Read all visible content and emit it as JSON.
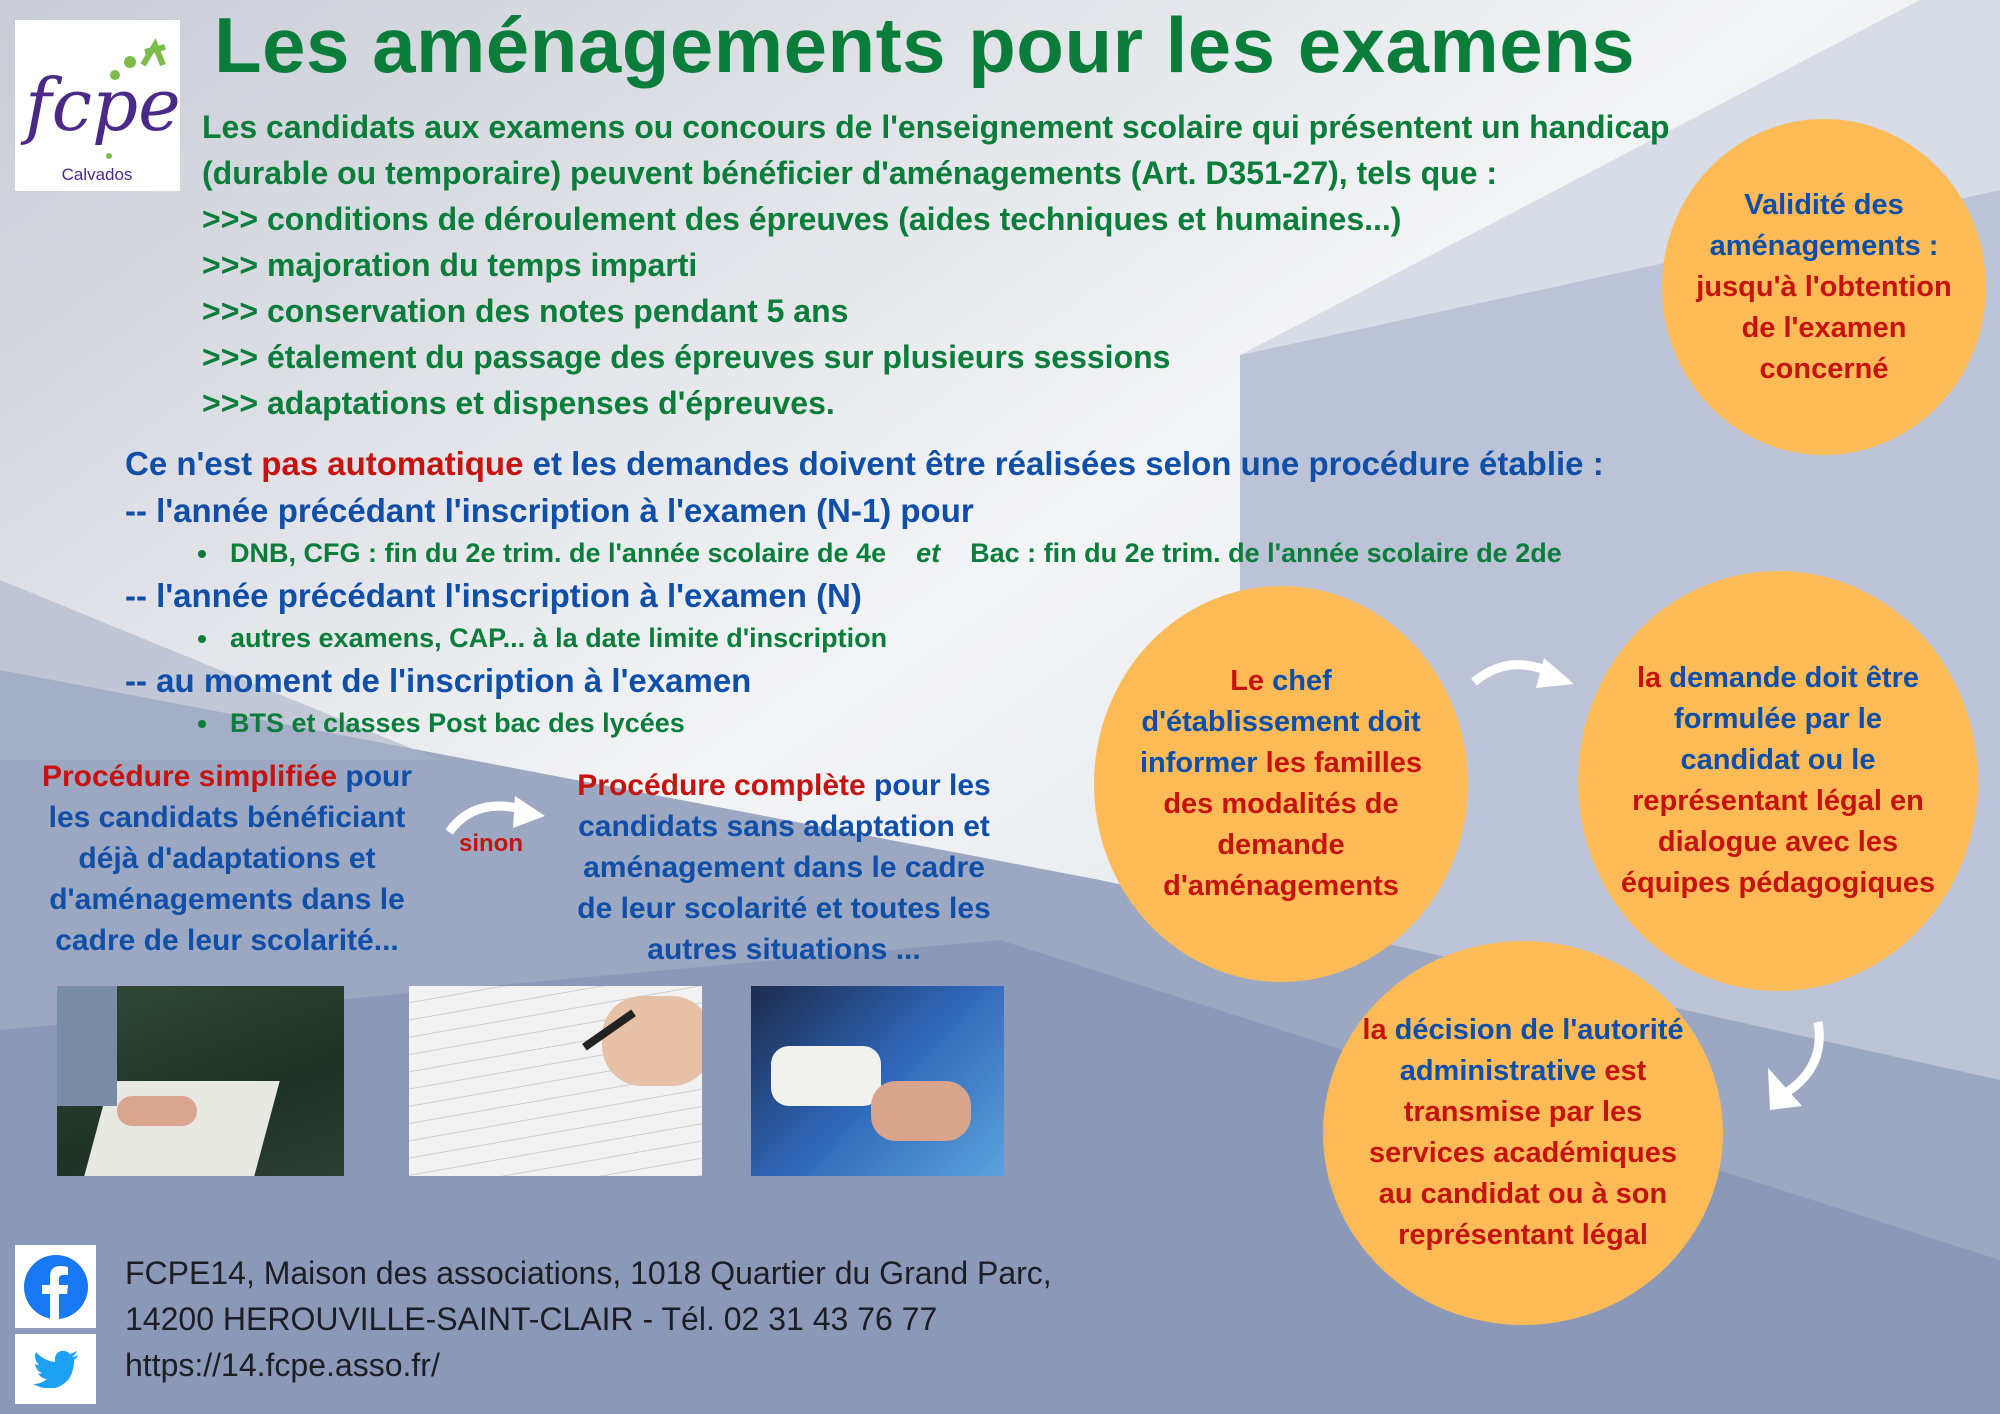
{
  "colors": {
    "green": "#0b7d3b",
    "blue": "#0f4fa8",
    "red": "#c5140f",
    "circle": "#fdbb58"
  },
  "logo": {
    "text": "fcpe",
    "region": "Calvados"
  },
  "title": "Les aménagements pour les examens",
  "intro": [
    "Les candidats aux examens ou concours de l'enseignement scolaire qui présentent un handicap",
    "(durable ou temporaire) peuvent bénéficier d'aménagements (Art. D351-27), tels que :",
    ">>> conditions de déroulement des épreuves (aides techniques et humaines...)",
    ">>> majoration du temps imparti",
    ">>> conservation des notes pendant 5 ans",
    ">>> étalement du passage des épreuves sur plusieurs sessions",
    ">>> adaptations et dispenses d'épreuves."
  ],
  "validity": [
    [
      {
        "text": "Validité des",
        "color": "blue"
      }
    ],
    [
      {
        "text": "aménagements :",
        "color": "blue"
      }
    ],
    [
      {
        "text": "jusqu'à l'obtention",
        "color": "red"
      }
    ],
    [
      {
        "text": "de l'examen",
        "color": "red"
      }
    ],
    [
      {
        "text": "concerné",
        "color": "red"
      }
    ]
  ],
  "procedure": {
    "lead": [
      {
        "text": "Ce n'est ",
        "color": "blue"
      },
      {
        "text": "pas automatique",
        "color": "red"
      },
      {
        "text": " et les demandes doivent être réalisées selon une procédure établie :",
        "color": "blue"
      }
    ],
    "n1": "-- l'année précédant l'inscription à l'examen (N-1) pour",
    "n1_bullet_a": "DNB, CFG : fin du 2e trim. de l'année scolaire de 4e",
    "n1_bullet_et": "et",
    "n1_bullet_b": "Bac : fin du 2e trim. de l'année scolaire de 2de",
    "n": "-- l'année précédant l'inscription à l'examen (N)",
    "n_bullet": "autres examens, CAP... à la date limite d'inscription",
    "at": "-- au moment de l'inscription à l'examen",
    "at_bullet": "BTS et classes Post bac des lycées"
  },
  "simplified": [
    [
      {
        "text": "Procédure simplifiée",
        "color": "red"
      },
      {
        "text": " pour",
        "color": "blue"
      }
    ],
    [
      {
        "text": "les candidats bénéficiant",
        "color": "blue"
      }
    ],
    [
      {
        "text": "déjà d'adaptations et",
        "color": "blue"
      }
    ],
    [
      {
        "text": "d'aménagements dans le",
        "color": "blue"
      }
    ],
    [
      {
        "text": "cadre de leur scolarité...",
        "color": "blue"
      }
    ]
  ],
  "sinon": "sinon",
  "complete": [
    [
      {
        "text": "Procédure complète",
        "color": "red"
      },
      {
        "text": " pour les",
        "color": "blue"
      }
    ],
    [
      {
        "text": "candidats sans adaptation et",
        "color": "blue"
      }
    ],
    [
      {
        "text": "aménagement dans le cadre",
        "color": "blue"
      }
    ],
    [
      {
        "text": "de leur scolarité et toutes les",
        "color": "blue"
      }
    ],
    [
      {
        "text": "autres situations ...",
        "color": "blue"
      }
    ]
  ],
  "steps": {
    "chef": [
      [
        {
          "text": "Le ",
          "color": "red"
        },
        {
          "text": "chef",
          "color": "blue"
        }
      ],
      [
        {
          "text": "d'établissement doit",
          "color": "blue"
        }
      ],
      [
        {
          "text": "informer ",
          "color": "blue"
        },
        {
          "text": "les familles",
          "color": "red"
        }
      ],
      [
        {
          "text": "des modalités de",
          "color": "red"
        }
      ],
      [
        {
          "text": "demande",
          "color": "red"
        }
      ],
      [
        {
          "text": "d'aménagements",
          "color": "red"
        }
      ]
    ],
    "demande": [
      [
        {
          "text": "la ",
          "color": "red"
        },
        {
          "text": "demande doit être",
          "color": "blue"
        }
      ],
      [
        {
          "text": "formulée par le",
          "color": "blue"
        }
      ],
      [
        {
          "text": "candidat ou le",
          "color": "blue"
        }
      ],
      [
        {
          "text": "représentant légal en",
          "color": "red"
        }
      ],
      [
        {
          "text": "dialogue avec les",
          "color": "red"
        }
      ],
      [
        {
          "text": "équipes pédagogiques",
          "color": "red"
        }
      ]
    ],
    "decision": [
      [
        {
          "text": "la ",
          "color": "red"
        },
        {
          "text": "décision de l'autorité",
          "color": "blue"
        }
      ],
      [
        {
          "text": "administrative ",
          "color": "blue"
        },
        {
          "text": "est",
          "color": "red"
        }
      ],
      [
        {
          "text": "transmise par les",
          "color": "red"
        }
      ],
      [
        {
          "text": "services académiques",
          "color": "red"
        }
      ],
      [
        {
          "text": "au candidat ou à son",
          "color": "red"
        }
      ],
      [
        {
          "text": "représentant légal",
          "color": "red"
        }
      ]
    ]
  },
  "photos": [
    "braille-reading-photo",
    "exam-sheet-writing-photo",
    "arm-sling-photo"
  ],
  "footer": {
    "line1": "FCPE14, Maison des associations, 1018 Quartier du Grand Parc,",
    "line2": "14200 HEROUVILLE-SAINT-CLAIR - Tél. 02 31 43 76 77",
    "url": "https://14.fcpe.asso.fr/",
    "icons": [
      "facebook-icon",
      "twitter-icon"
    ]
  }
}
